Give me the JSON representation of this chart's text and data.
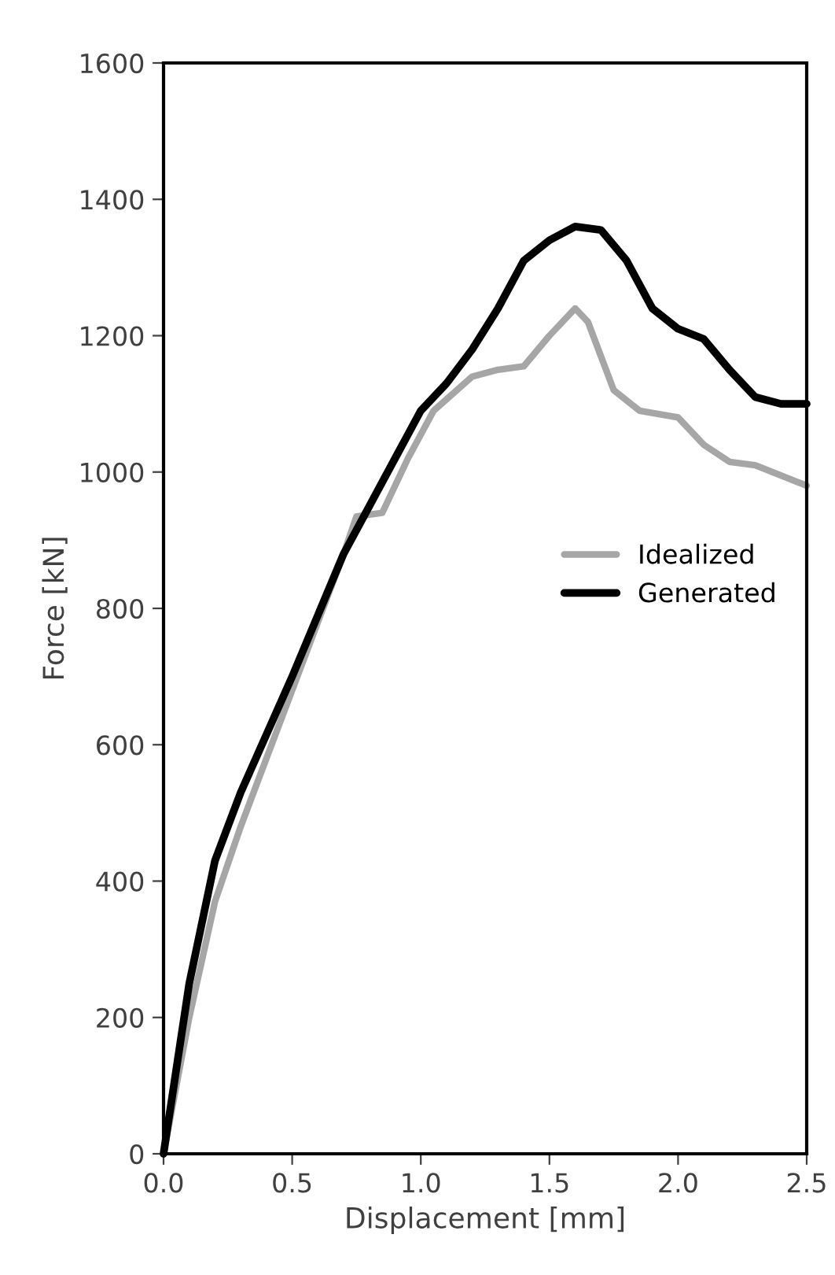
{
  "chart_data": {
    "type": "line",
    "xlabel": "Displacement [mm]",
    "ylabel": "Force [kN]",
    "xlim": [
      0,
      2.5
    ],
    "xticks": [
      {
        "value": 0,
        "label": "0.0"
      },
      0.5,
      {
        "value": 1,
        "label": "1.0"
      },
      1.5,
      {
        "value": 2,
        "label": "2.0"
      },
      2.5
    ],
    "ylim": [
      0,
      1600
    ],
    "yticks": [
      0,
      200,
      400,
      600,
      800,
      1000,
      1200,
      1400,
      1600
    ],
    "grid": false,
    "legend": "center right",
    "marker": "none",
    "line_style": "solid",
    "series": [
      {
        "name": "Idealized",
        "color": "#a6a6a6",
        "x": [
          0,
          0.1,
          0.2,
          0.3,
          0.5,
          0.7,
          0.75,
          0.85,
          0.95,
          1.05,
          1.2,
          1.3,
          1.4,
          1.5,
          1.6,
          1.65,
          1.75,
          1.85,
          2.0,
          2.1,
          2.2,
          2.3,
          2.4,
          2.5
        ],
        "values": [
          0,
          200,
          370,
          480,
          680,
          880,
          935,
          940,
          1020,
          1090,
          1140,
          1150,
          1155,
          1200,
          1240,
          1220,
          1120,
          1090,
          1080,
          1040,
          1015,
          1010,
          995,
          980
        ]
      },
      {
        "name": "Generated",
        "color": "#000000",
        "x": [
          0,
          0.1,
          0.2,
          0.3,
          0.5,
          0.7,
          0.9,
          1.0,
          1.1,
          1.2,
          1.3,
          1.4,
          1.5,
          1.6,
          1.7,
          1.8,
          1.9,
          2.0,
          2.1,
          2.2,
          2.3,
          2.4,
          2.5
        ],
        "values": [
          0,
          250,
          430,
          530,
          700,
          880,
          1020,
          1090,
          1130,
          1180,
          1240,
          1310,
          1340,
          1360,
          1355,
          1310,
          1240,
          1210,
          1195,
          1150,
          1110,
          1100,
          1100
        ]
      }
    ]
  }
}
